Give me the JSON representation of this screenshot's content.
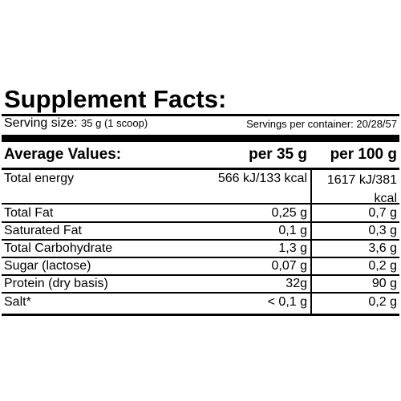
{
  "title": "Supplement Facts:",
  "serving": {
    "size_label": "Serving size:",
    "size_value": "35 g (1 scoop)",
    "per_container": "Servings per container: 20/28/57"
  },
  "table": {
    "headers": [
      "Average Values:",
      "per 35 g",
      "per 100 g"
    ],
    "rows": [
      {
        "name": "Total energy",
        "per35": "566 kJ/133 kcal",
        "per100": "1617 kJ/381 kcal"
      },
      {
        "name": "Total Fat",
        "per35": "0,25 g",
        "per100": "0,7 g"
      },
      {
        "name": "Saturated Fat",
        "per35": "0,1 g",
        "per100": "0,3 g"
      },
      {
        "name": "Total Carbohydrate",
        "per35": "1,3 g",
        "per100": "3,6 g"
      },
      {
        "name": "Sugar (lactose)",
        "per35": "0,07 g",
        "per100": "0,2 g"
      },
      {
        "name": "Protein (dry basis)",
        "per35": "32g",
        "per100": "90 g"
      },
      {
        "name": "Salt*",
        "per35": "< 0,1 g",
        "per100": "0,2 g"
      }
    ]
  }
}
